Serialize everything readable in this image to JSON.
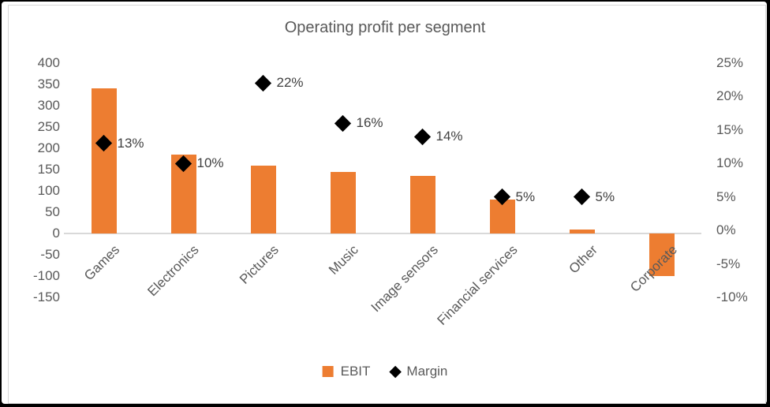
{
  "title": "Operating profit per segment",
  "colors": {
    "bar": "#ED7D31",
    "marker": "#000000",
    "axis_text": "#595959",
    "title_text": "#595959",
    "data_label_text": "#404040",
    "zero_line": "#D9D9D9"
  },
  "legend": {
    "items": [
      {
        "label": "EBIT",
        "swatch": "orange-square"
      },
      {
        "label": "Margin",
        "swatch": "black-diamond"
      }
    ]
  },
  "chart_data": {
    "type": "bar",
    "subtype": "combo-bar-scatter",
    "title": "Operating profit per segment",
    "categories": [
      "Games",
      "Electronics",
      "Pictures",
      "Music",
      "Image sensors",
      "Financial services",
      "Other",
      "Corporate"
    ],
    "series": [
      {
        "name": "EBIT",
        "type": "bar",
        "axis": "left",
        "values": [
          340,
          185,
          160,
          145,
          135,
          80,
          10,
          -100
        ]
      },
      {
        "name": "Margin",
        "type": "scatter",
        "marker": "diamond",
        "axis": "right",
        "values": [
          13,
          10,
          22,
          16,
          14,
          5,
          5,
          null
        ],
        "data_labels": [
          "13%",
          "10%",
          "22%",
          "16%",
          "14%",
          "5%",
          "5%",
          null
        ]
      }
    ],
    "left_axis": {
      "min": -150,
      "max": 400,
      "step": 50,
      "tick_labels": [
        "400",
        "350",
        "300",
        "250",
        "200",
        "150",
        "100",
        "50",
        "0",
        "-50",
        "-100",
        "-150"
      ],
      "tick_values": [
        400,
        350,
        300,
        250,
        200,
        150,
        100,
        50,
        0,
        -50,
        -100,
        -150
      ]
    },
    "right_axis": {
      "min": -10,
      "max": 25,
      "step": 5,
      "tick_labels": [
        "25%",
        "20%",
        "15%",
        "10%",
        "5%",
        "0%",
        "-5%",
        "-10%"
      ],
      "tick_values": [
        25,
        20,
        15,
        10,
        5,
        0,
        -5,
        -10
      ]
    },
    "grid": "zero-line-only",
    "legend_position": "bottom-center"
  }
}
